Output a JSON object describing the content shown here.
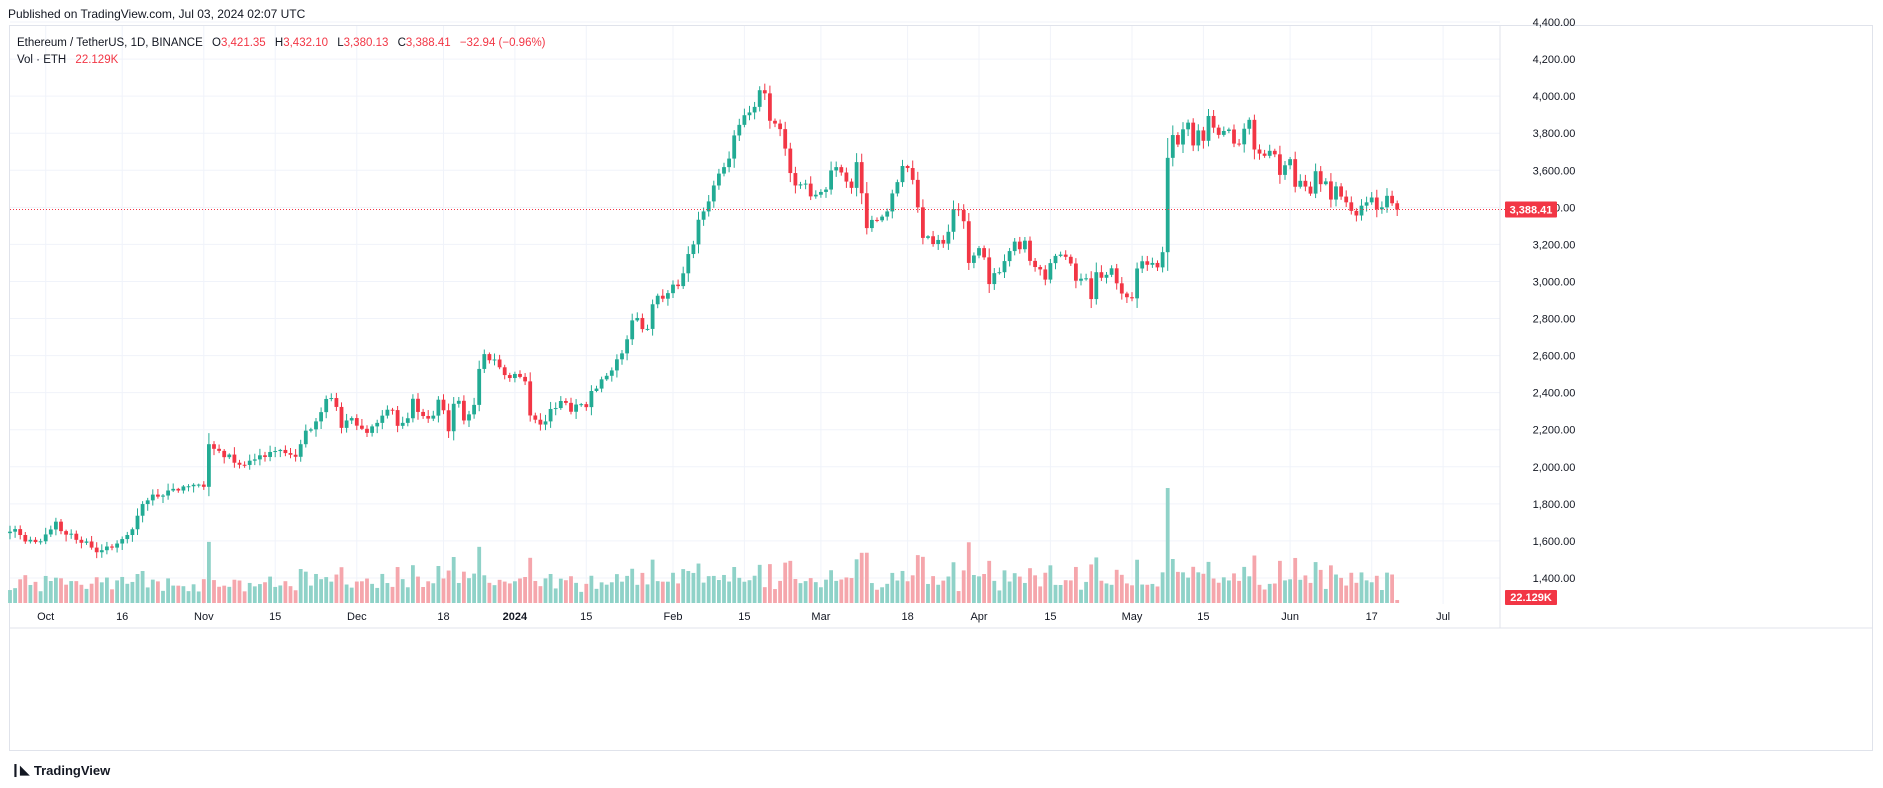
{
  "published": "Published on TradingView.com, Jul 03, 2024 02:07 UTC",
  "legend": {
    "symbol": "Ethereum / TetherUS, 1D, BINANCE",
    "o_label": "O",
    "o_value": "3,421.35",
    "h_label": "H",
    "h_value": "3,432.10",
    "l_label": "L",
    "l_value": "3,380.13",
    "c_label": "C",
    "c_value": "3,388.41",
    "change": "−32.94 (−0.96%)",
    "vol_label": "Vol · ETH",
    "vol_value": "22.129K"
  },
  "brand": "TradingView",
  "colors": {
    "up": "#22ab94",
    "down": "#f23645",
    "vol_up": "#8fd2c8",
    "vol_down": "#f5a6ac",
    "grid": "#f0f3fa",
    "axis_text": "#131722"
  },
  "chart_data": {
    "type": "candlestick",
    "title": "Ethereum / TetherUS, 1D, BINANCE",
    "ylim": [
      1300,
      4400
    ],
    "price_ticks": [
      "4,400.00",
      "4,200.00",
      "4,000.00",
      "3,800.00",
      "3,600.00",
      "3,400.00",
      "3,200.00",
      "3,000.00",
      "2,800.00",
      "2,600.00",
      "2,400.00",
      "2,200.00",
      "2,000.00",
      "1,800.00",
      "1,600.00",
      "1,400.00"
    ],
    "price_tick_values": [
      4400,
      4200,
      4000,
      3800,
      3600,
      3400,
      3200,
      3000,
      2800,
      2600,
      2400,
      2200,
      2000,
      1800,
      1600,
      1400
    ],
    "x_ticks": [
      {
        "label": "Oct",
        "index": 7,
        "bold": false
      },
      {
        "label": "16",
        "index": 22,
        "bold": false
      },
      {
        "label": "Nov",
        "index": 38,
        "bold": false
      },
      {
        "label": "15",
        "index": 52,
        "bold": false
      },
      {
        "label": "Dec",
        "index": 68,
        "bold": false
      },
      {
        "label": "18",
        "index": 85,
        "bold": false
      },
      {
        "label": "2024",
        "index": 99,
        "bold": true
      },
      {
        "label": "15",
        "index": 113,
        "bold": false
      },
      {
        "label": "Feb",
        "index": 130,
        "bold": false
      },
      {
        "label": "15",
        "index": 144,
        "bold": false
      },
      {
        "label": "Mar",
        "index": 159,
        "bold": false
      },
      {
        "label": "18",
        "index": 176,
        "bold": false
      },
      {
        "label": "Apr",
        "index": 190,
        "bold": false
      },
      {
        "label": "15",
        "index": 204,
        "bold": false
      },
      {
        "label": "May",
        "index": 220,
        "bold": false
      },
      {
        "label": "15",
        "index": 234,
        "bold": false
      },
      {
        "label": "Jun",
        "index": 251,
        "bold": false
      },
      {
        "label": "17",
        "index": 267,
        "bold": false
      },
      {
        "label": "Jul",
        "index": 281,
        "bold": false
      }
    ],
    "last_price": 3388.41,
    "last_price_label": "3,388.41",
    "last_volume_label": "22.129K",
    "volume_max": 2050,
    "closes": [
      1650,
      1664,
      1632,
      1597,
      1606,
      1594,
      1598,
      1635,
      1662,
      1704,
      1653,
      1634,
      1639,
      1606,
      1590,
      1597,
      1564,
      1539,
      1550,
      1570,
      1564,
      1586,
      1610,
      1632,
      1663,
      1736,
      1799,
      1819,
      1850,
      1839,
      1845,
      1872,
      1881,
      1872,
      1894,
      1895,
      1903,
      1904,
      1892,
      2122,
      2097,
      2086,
      2052,
      2066,
      2022,
      2011,
      2010,
      2033,
      2040,
      2062,
      2053,
      2080,
      2085,
      2091,
      2074,
      2065,
      2054,
      2122,
      2195,
      2202,
      2245,
      2295,
      2366,
      2371,
      2323,
      2210,
      2250,
      2263,
      2222,
      2205,
      2183,
      2218,
      2237,
      2276,
      2308,
      2306,
      2221,
      2237,
      2262,
      2367,
      2296,
      2274,
      2260,
      2276,
      2362,
      2305,
      2192,
      2340,
      2356,
      2250,
      2283,
      2334,
      2528,
      2608,
      2575,
      2579,
      2537,
      2495,
      2479,
      2501,
      2485,
      2461,
      2277,
      2254,
      2228,
      2245,
      2312,
      2317,
      2355,
      2345,
      2297,
      2336,
      2338,
      2322,
      2409,
      2422,
      2472,
      2491,
      2520,
      2580,
      2612,
      2688,
      2790,
      2803,
      2743,
      2744,
      2877,
      2923,
      2907,
      2937,
      2983,
      2975,
      3044,
      3148,
      3200,
      3333,
      3378,
      3432,
      3518,
      3582,
      3617,
      3663,
      3788,
      3845,
      3897,
      3912,
      3942,
      4032,
      4015,
      3867,
      3852,
      3822,
      3717,
      3585,
      3518,
      3524,
      3528,
      3459,
      3468,
      3483,
      3496,
      3599,
      3617,
      3588,
      3539,
      3505,
      3644,
      3476,
      3288,
      3332,
      3330,
      3350,
      3378,
      3475,
      3536,
      3623,
      3612,
      3548,
      3400,
      3235,
      3244,
      3202,
      3224,
      3204,
      3268,
      3390,
      3386,
      3325,
      3100,
      3140,
      3180,
      3130,
      2986,
      3045,
      3050,
      3110,
      3164,
      3215,
      3174,
      3220,
      3111,
      3078,
      3065,
      3010,
      3099,
      3138,
      3145,
      3133,
      3097,
      3004,
      3015,
      3017,
      2905,
      3050,
      3020,
      3036,
      3071,
      2990,
      2935,
      2915,
      2909,
      3070,
      3109,
      3090,
      3100,
      3076,
      3158,
      3667,
      3790,
      3739,
      3821,
      3857,
      3734,
      3815,
      3759,
      3893,
      3830,
      3791,
      3812,
      3820,
      3744,
      3740,
      3824,
      3872,
      3712,
      3690,
      3678,
      3705,
      3686,
      3575,
      3627,
      3660,
      3511,
      3543,
      3512,
      3474,
      3595,
      3525,
      3540,
      3442,
      3513,
      3458,
      3427,
      3381,
      3356,
      3409,
      3427,
      3453,
      3389,
      3400,
      3462,
      3422,
      3388
    ]
  }
}
